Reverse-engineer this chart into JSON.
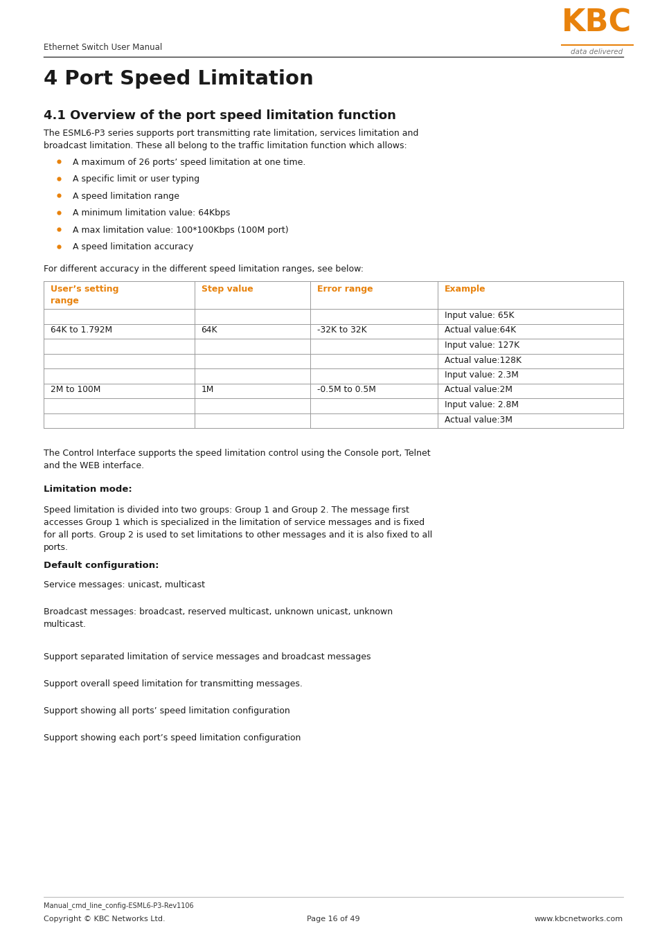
{
  "page_width": 9.54,
  "page_height": 13.5,
  "bg_color": "#ffffff",
  "orange_color": "#e8820c",
  "black_color": "#1a1a1a",
  "dark_gray": "#444444",
  "header_text": "Ethernet Switch User Manual",
  "logo_sub": "data delivered",
  "chapter_title": "4 Port Speed Limitation",
  "section_title": "4.1 Overview of the port speed limitation function",
  "intro_text": "The ESML6-P3 series supports port transmitting rate limitation, services limitation and\nbroadcast limitation. These all belong to the traffic limitation function which allows:",
  "bullets": [
    "A maximum of 26 ports’ speed limitation at one time.",
    "A specific limit or user typing",
    "A speed limitation range",
    "A minimum limitation value: 64Kbps",
    "A max limitation value: 100*100Kbps (100M port)",
    "A speed limitation accuracy"
  ],
  "table_intro": "For different accuracy in the different speed limitation ranges, see below:",
  "table_headers": [
    "User’s setting\nrange",
    "Step value",
    "Error range",
    "Example"
  ],
  "table_rows": [
    [
      "",
      "",
      "",
      "Input value: 65K"
    ],
    [
      "64K to 1.792M",
      "64K",
      "-32K to 32K",
      "Actual value:64K"
    ],
    [
      "",
      "",
      "",
      "Input value: 127K"
    ],
    [
      "",
      "",
      "",
      "Actual value:128K"
    ],
    [
      "",
      "",
      "",
      "Input value: 2.3M"
    ],
    [
      "2M to 100M",
      "1M",
      "-0.5M to 0.5M",
      "Actual value:2M"
    ],
    [
      "",
      "",
      "",
      "Input value: 2.8M"
    ],
    [
      "",
      "",
      "",
      "Actual value:3M"
    ]
  ],
  "post_table_text": "The Control Interface supports the speed limitation control using the Console port, Telnet\nand the WEB interface.",
  "limitation_mode_title": "Limitation mode",
  "limitation_mode_colon": ":",
  "limitation_mode_text": "Speed limitation is divided into two groups: Group 1 and Group 2. The message first\naccesses Group 1 which is specialized in the limitation of service messages and is fixed\nfor all ports. Group 2 is used to set limitations to other messages and it is also fixed to all\nports.",
  "default_config_title": "Default configuration:",
  "default_config_items": [
    "Service messages: unicast, multicast",
    "Broadcast messages: broadcast, reserved multicast, unknown unicast, unknown\nmulticast.",
    "Support separated limitation of service messages and broadcast messages",
    "Support overall speed limitation for transmitting messages.",
    "Support showing all ports’ speed limitation configuration",
    "Support showing each port’s speed limitation configuration"
  ],
  "footer_manual": "Manual_cmd_line_config-ESML6-P3-Rev1106",
  "footer_copyright": "Copyright © KBC Networks Ltd.",
  "footer_page": "Page 16 of 49",
  "footer_website": "www.kbcnetworks.com"
}
